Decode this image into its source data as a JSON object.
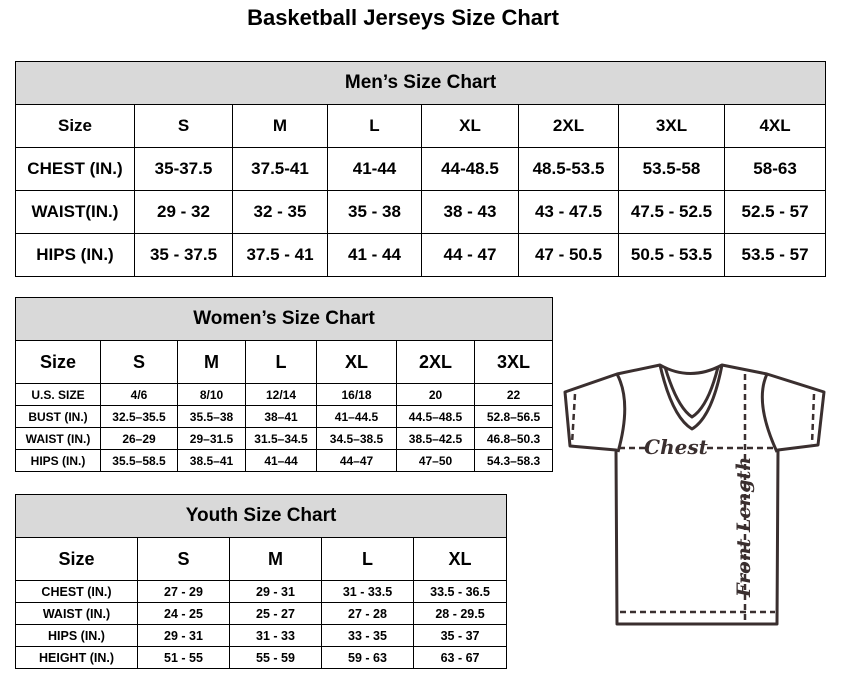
{
  "title": "Basketball Jerseys Size Chart",
  "men": {
    "heading": "Men’s Size Chart",
    "columns": [
      "Size",
      "S",
      "M",
      "L",
      "XL",
      "2XL",
      "3XL",
      "4XL"
    ],
    "rows": [
      [
        "CHEST (IN.)",
        "35-37.5",
        "37.5-41",
        "41-44",
        "44-48.5",
        "48.5-53.5",
        "53.5-58",
        "58-63"
      ],
      [
        "WAIST(IN.)",
        "29 - 32",
        "32 - 35",
        "35 - 38",
        "38 - 43",
        "43 - 47.5",
        "47.5 - 52.5",
        "52.5 - 57"
      ],
      [
        "HIPS (IN.)",
        "35 - 37.5",
        "37.5 - 41",
        "41 - 44",
        "44 - 47",
        "47 - 50.5",
        "50.5 - 53.5",
        "53.5 - 57"
      ]
    ]
  },
  "women": {
    "heading": "Women’s Size Chart",
    "columns": [
      "Size",
      "S",
      "M",
      "L",
      "XL",
      "2XL",
      "3XL"
    ],
    "rows": [
      [
        "U.S. SIZE",
        "4/6",
        "8/10",
        "12/14",
        "16/18",
        "20",
        "22"
      ],
      [
        "BUST (IN.)",
        "32.5–35.5",
        "35.5–38",
        "38–41",
        "41–44.5",
        "44.5–48.5",
        "52.8–56.5"
      ],
      [
        "WAIST (IN.)",
        "26–29",
        "29–31.5",
        "31.5–34.5",
        "34.5–38.5",
        "38.5–42.5",
        "46.8–50.3"
      ],
      [
        "HIPS (IN.)",
        "35.5–58.5",
        "38.5–41",
        "41–44",
        "44–47",
        "47–50",
        "54.3–58.3"
      ]
    ]
  },
  "youth": {
    "heading": "Youth Size Chart",
    "columns": [
      "Size",
      "S",
      "M",
      "L",
      "XL"
    ],
    "rows": [
      [
        "CHEST (IN.)",
        "27 - 29",
        "29 - 31",
        "31 - 33.5",
        "33.5 - 36.5"
      ],
      [
        "WAIST (IN.)",
        "24 - 25",
        "25 - 27",
        "27 - 28",
        "28 - 29.5"
      ],
      [
        "HIPS (IN.)",
        "29 - 31",
        "31 - 33",
        "33 - 35",
        "35 - 37"
      ],
      [
        "HEIGHT (IN.)",
        "51 - 55",
        "55 - 59",
        "59 - 63",
        "63 - 67"
      ]
    ]
  },
  "diagram": {
    "chest_label": "Chest",
    "length_label": "Front Length"
  }
}
